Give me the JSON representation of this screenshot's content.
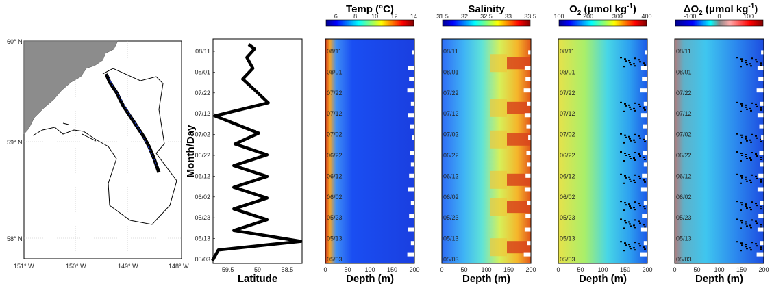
{
  "colors": {
    "land": "#8c8c8c",
    "track": "#000000",
    "stations": "#1f3bd6",
    "line": "#000000"
  },
  "chart_data": [
    {
      "type": "map",
      "lat_labels": [
        "60° N",
        "59° N",
        "58° N"
      ],
      "lon_labels": [
        "151° W",
        "150° W",
        "149° W",
        "148° W"
      ],
      "lon_range": [
        -151,
        -148
      ],
      "lat_range": [
        57.85,
        60.0
      ]
    },
    {
      "type": "line",
      "xlabel": "Latitude",
      "ylabel": "Month/Day",
      "xticks": [
        "59.5",
        "59",
        "58.5"
      ],
      "xlim": [
        59.75,
        58.25
      ],
      "yticks": [
        "08/11",
        "08/01",
        "07/22",
        "07/12",
        "07/02",
        "06/22",
        "06/12",
        "06/02",
        "05/23",
        "05/13",
        "05/03"
      ],
      "series": [
        {
          "points": [
            [
              0,
              59.76
            ],
            [
              5,
              59.66
            ],
            [
              9,
              58.27
            ],
            [
              14,
              59.4
            ],
            [
              19,
              58.84
            ],
            [
              24,
              59.4
            ],
            [
              29,
              58.84
            ],
            [
              34,
              59.4
            ],
            [
              39,
              58.84
            ],
            [
              44,
              59.4
            ],
            [
              49,
              58.84
            ],
            [
              54,
              59.38
            ],
            [
              59,
              58.98
            ],
            [
              67,
              59.72
            ],
            [
              73,
              58.82
            ],
            [
              79,
              59.05
            ],
            [
              84,
              59.25
            ],
            [
              89,
              59.08
            ],
            [
              94,
              59.18
            ],
            [
              98,
              59.05
            ],
            [
              100,
              59.15
            ]
          ]
        }
      ]
    },
    {
      "type": "heatmap",
      "title": "Temp (°C)",
      "xlabel": "Depth (m)",
      "xticks": [
        "0",
        "50",
        "100",
        "150",
        "200"
      ],
      "xlim": [
        0,
        200
      ],
      "colorbar_ticks": [
        "6",
        "8",
        "10",
        "12",
        "14"
      ],
      "colorbar_range": [
        5,
        14
      ],
      "yticks": [
        "08/11",
        "08/01",
        "07/22",
        "07/12",
        "07/02",
        "06/22",
        "06/12",
        "06/02",
        "05/23",
        "05/13",
        "05/03"
      ]
    },
    {
      "type": "heatmap",
      "title": "Salinity",
      "xlabel": "Depth (m)",
      "xticks": [
        "0",
        "50",
        "100",
        "150",
        "200"
      ],
      "xlim": [
        0,
        200
      ],
      "colorbar_ticks": [
        "31.5",
        "32",
        "32.5",
        "33",
        "33.5"
      ],
      "colorbar_range": [
        31.5,
        33.5
      ],
      "yticks": [
        "08/11",
        "08/01",
        "07/22",
        "07/12",
        "07/02",
        "06/22",
        "06/12",
        "06/02",
        "05/23",
        "05/13",
        "05/03"
      ]
    },
    {
      "type": "heatmap",
      "title": "O2 (μmol kg-1)",
      "xlabel": "Depth (m)",
      "xticks": [
        "0",
        "50",
        "100",
        "150",
        "200"
      ],
      "xlim": [
        0,
        200
      ],
      "colorbar_ticks": [
        "100",
        "200",
        "300",
        "400"
      ],
      "colorbar_range": [
        100,
        400
      ],
      "yticks": [
        "08/11",
        "08/01",
        "07/22",
        "07/12",
        "07/02",
        "06/22",
        "06/12",
        "06/02",
        "05/23",
        "05/13",
        "05/03"
      ]
    },
    {
      "type": "heatmap",
      "title": "ΔO2 (μmol kg-1)",
      "xlabel": "Depth (m)",
      "xticks": [
        "0",
        "50",
        "100",
        "150",
        "200"
      ],
      "xlim": [
        0,
        200
      ],
      "colorbar_ticks": [
        "-100",
        "0",
        "100"
      ],
      "colorbar_range": [
        -150,
        150
      ],
      "yticks": [
        "08/11",
        "08/01",
        "07/22",
        "07/12",
        "07/02",
        "06/22",
        "06/12",
        "06/02",
        "05/23",
        "05/13",
        "05/03"
      ]
    }
  ]
}
